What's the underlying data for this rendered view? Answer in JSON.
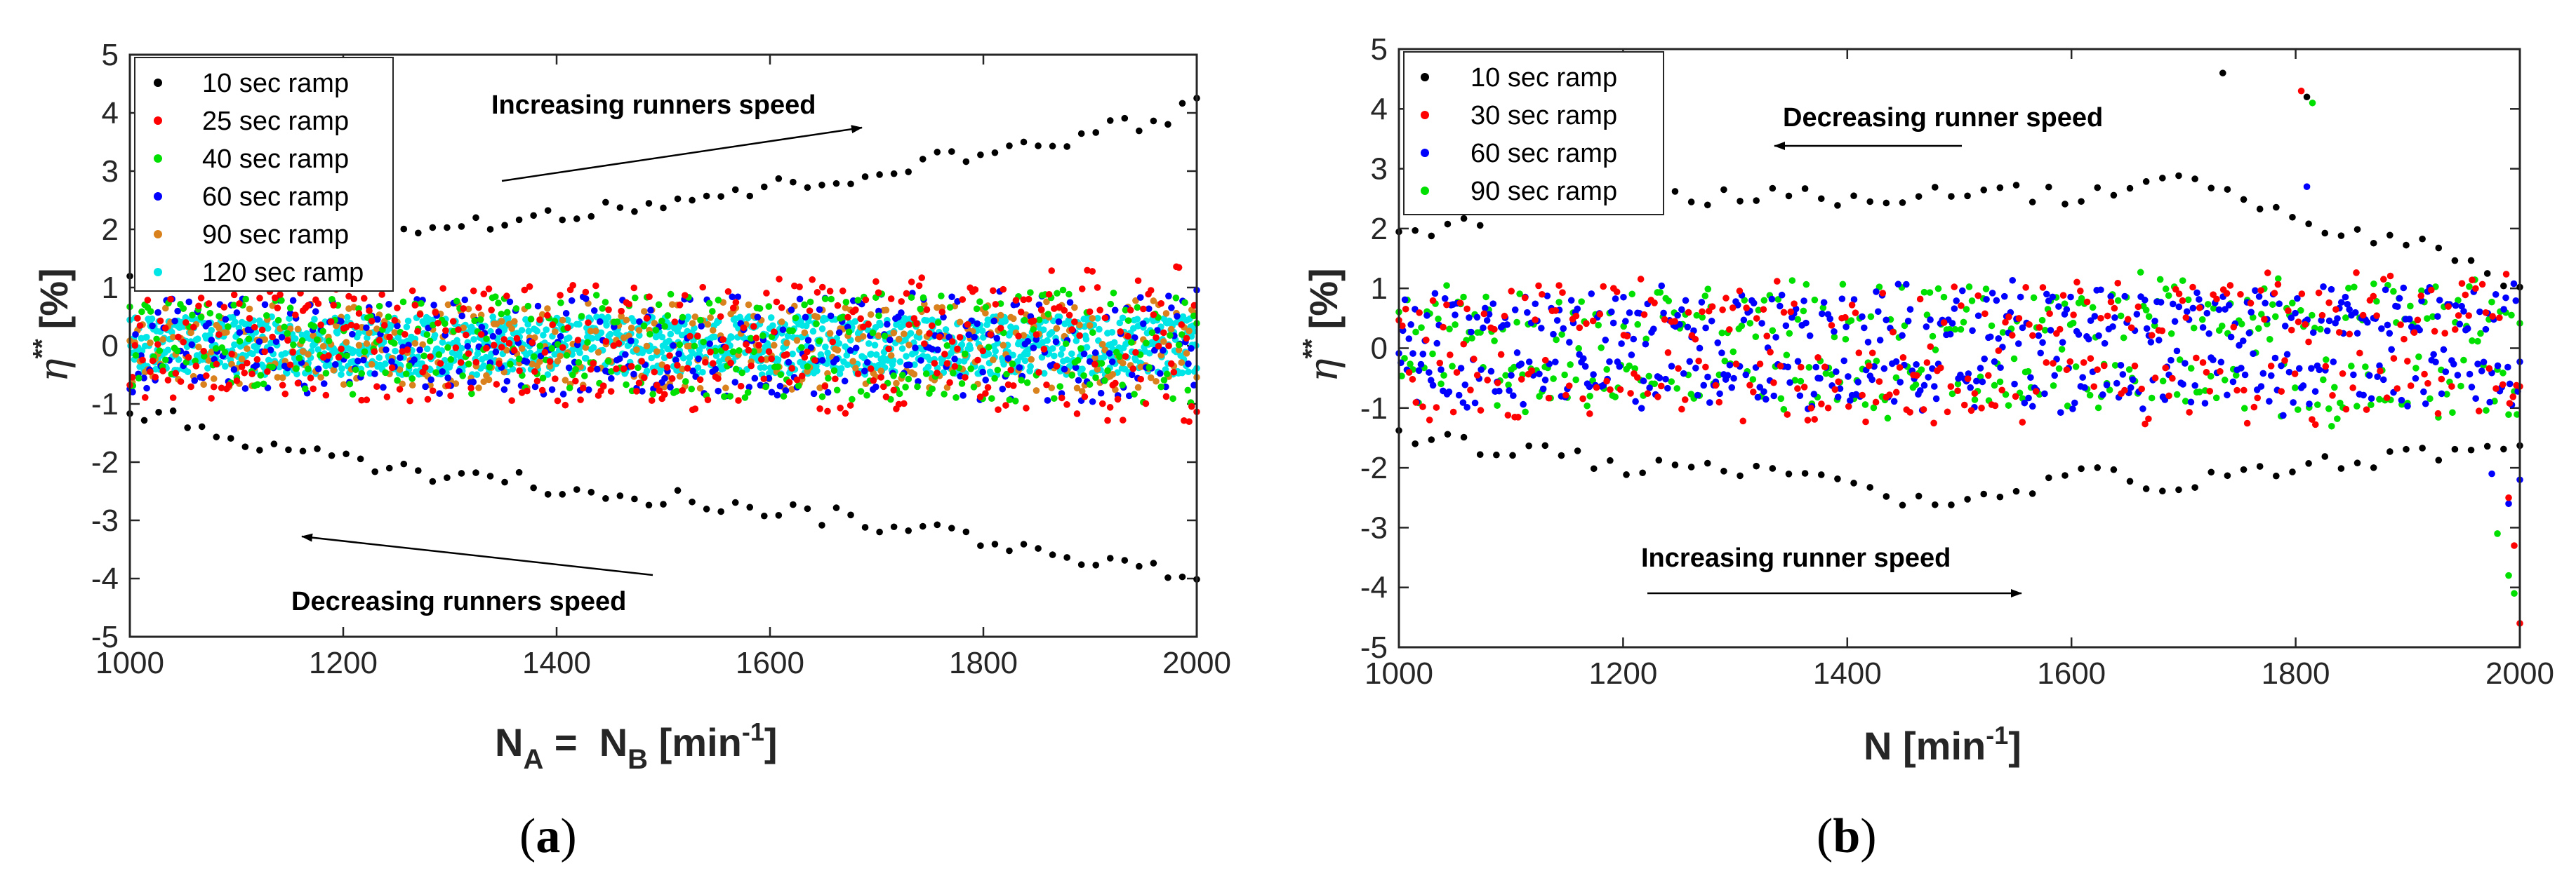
{
  "panels": {
    "a": {
      "label_open": "(",
      "label_letter": "a",
      "label_close": ")",
      "ylabel_symbol": "η",
      "ylabel_superscript": "**",
      "ylabel_unit": "[%]",
      "xlabel_main": "N",
      "xlabel_sub_a": "A",
      "xlabel_eq": " =  N",
      "xlabel_sub_b": "B",
      "xlabel_unit": " [min",
      "xlabel_exp": "-1",
      "xlabel_close": "]",
      "annotation_top": "Increasing runners speed",
      "annotation_bottom": "Decreasing runners speed"
    },
    "b": {
      "label_open": "(",
      "label_letter": "b",
      "label_close": ")",
      "ylabel_symbol": "η",
      "ylabel_superscript": "**",
      "ylabel_unit": "[%]",
      "xlabel_main": "N [min",
      "xlabel_exp": "-1",
      "xlabel_close": "]",
      "annotation_top": "Decreasing runner speed",
      "annotation_bottom": "Increasing runner speed"
    }
  },
  "chart_data": [
    {
      "type": "scatter",
      "panel": "a",
      "title": "",
      "xlabel": "N_A = N_B [min^-1]",
      "ylabel": "η** [%]",
      "xlim": [
        1000,
        2000
      ],
      "ylim": [
        -5,
        5
      ],
      "xticks": [
        1000,
        1200,
        1400,
        1600,
        1800,
        2000
      ],
      "yticks": [
        -5,
        -4,
        -3,
        -2,
        -1,
        0,
        1,
        2,
        3,
        4,
        5
      ],
      "legend_position": "top-left",
      "series": [
        {
          "name": "10 sec ramp",
          "color": "#000000",
          "upper_band": [
            [
              1000,
              1.1
            ],
            [
              1200,
              1.9
            ],
            [
              1400,
              2.3
            ],
            [
              1600,
              2.7
            ],
            [
              1800,
              3.3
            ],
            [
              1960,
              3.9
            ],
            [
              2000,
              4.1
            ]
          ],
          "lower_band": [
            [
              1000,
              -1.1
            ],
            [
              1200,
              -2.0
            ],
            [
              1400,
              -2.4
            ],
            [
              1600,
              -2.8
            ],
            [
              1800,
              -3.3
            ],
            [
              1950,
              -3.8
            ],
            [
              2000,
              -4.1
            ]
          ],
          "point_count_per_band": 75
        },
        {
          "name": "25 sec ramp",
          "color": "#ff0000",
          "band": [
            [
              1000,
              0.9
            ],
            [
              1500,
              1.1
            ],
            [
              2000,
              1.4
            ]
          ],
          "point_count": 420
        },
        {
          "name": "40 sec ramp",
          "color": "#00e000",
          "band": [
            [
              1000,
              0.8
            ],
            [
              1500,
              0.9
            ],
            [
              2000,
              1.0
            ]
          ],
          "point_count": 360
        },
        {
          "name": "60 sec ramp",
          "color": "#0000ff",
          "band": [
            [
              1000,
              0.8
            ],
            [
              1500,
              0.85
            ],
            [
              2000,
              1.0
            ]
          ],
          "point_count": 380
        },
        {
          "name": "90 sec ramp",
          "color": "#d9821d",
          "band": [
            [
              1000,
              0.7
            ],
            [
              1500,
              0.75
            ],
            [
              2000,
              0.8
            ]
          ],
          "point_count": 420
        },
        {
          "name": "120 sec ramp",
          "color": "#00e5e5",
          "band": [
            [
              1000,
              0.5
            ],
            [
              1500,
              0.5
            ],
            [
              2000,
              0.5
            ]
          ],
          "point_count": 1400
        }
      ]
    },
    {
      "type": "scatter",
      "panel": "b",
      "title": "",
      "xlabel": "N [min^-1]",
      "ylabel": "η** [%]",
      "xlim": [
        1000,
        2000
      ],
      "ylim": [
        -5,
        5
      ],
      "xticks": [
        1000,
        1200,
        1400,
        1600,
        1800,
        2000
      ],
      "yticks": [
        -5,
        -4,
        -3,
        -2,
        -1,
        0,
        1,
        2,
        3,
        4,
        5
      ],
      "legend_position": "top-left",
      "series": [
        {
          "name": "10 sec ramp",
          "color": "#000000",
          "upper_band": [
            [
              1000,
              1.9
            ],
            [
              1100,
              2.2
            ],
            [
              1200,
              2.6
            ],
            [
              1400,
              2.5
            ],
            [
              1500,
              2.7
            ],
            [
              1600,
              2.5
            ],
            [
              1700,
              3.0
            ],
            [
              1800,
              2.1
            ],
            [
              1900,
              1.8
            ],
            [
              2000,
              1.1
            ]
          ],
          "lower_band": [
            [
              1000,
              -1.4
            ],
            [
              1200,
              -2.0
            ],
            [
              1400,
              -2.2
            ],
            [
              1490,
              -2.7
            ],
            [
              1600,
              -2.1
            ],
            [
              1700,
              -2.3
            ],
            [
              1800,
              -1.9
            ],
            [
              1900,
              -1.8
            ],
            [
              2000,
              -1.6
            ]
          ],
          "outliers": [
            [
              1735,
              4.6
            ],
            [
              1810,
              4.2
            ]
          ],
          "point_count_per_band": 70
        },
        {
          "name": "30 sec ramp",
          "color": "#ff0000",
          "band": [
            [
              1000,
              1.1
            ],
            [
              1500,
              1.2
            ],
            [
              2000,
              1.2
            ]
          ],
          "tail": [
            [
              1990,
              -2.5
            ],
            [
              1995,
              -3.3
            ],
            [
              2000,
              -4.6
            ]
          ],
          "outliers": [
            [
              1805,
              4.3
            ]
          ],
          "point_count": 330
        },
        {
          "name": "60 sec ramp",
          "color": "#0000ff",
          "band": [
            [
              1000,
              0.8
            ],
            [
              1500,
              1.0
            ],
            [
              2000,
              1.0
            ]
          ],
          "tail": [
            [
              1975,
              -2.1
            ],
            [
              1990,
              -2.6
            ],
            [
              2000,
              -2.2
            ]
          ],
          "outliers": [
            [
              1810,
              2.7
            ]
          ],
          "point_count": 560
        },
        {
          "name": "90 sec ramp",
          "color": "#00e000",
          "band": [
            [
              1000,
              0.9
            ],
            [
              1500,
              1.1
            ],
            [
              2000,
              1.2
            ]
          ],
          "tail": [
            [
              1980,
              -3.1
            ],
            [
              1990,
              -3.8
            ],
            [
              1995,
              -4.1
            ]
          ],
          "outliers": [
            [
              1815,
              4.1
            ]
          ],
          "point_count": 400
        }
      ]
    }
  ]
}
